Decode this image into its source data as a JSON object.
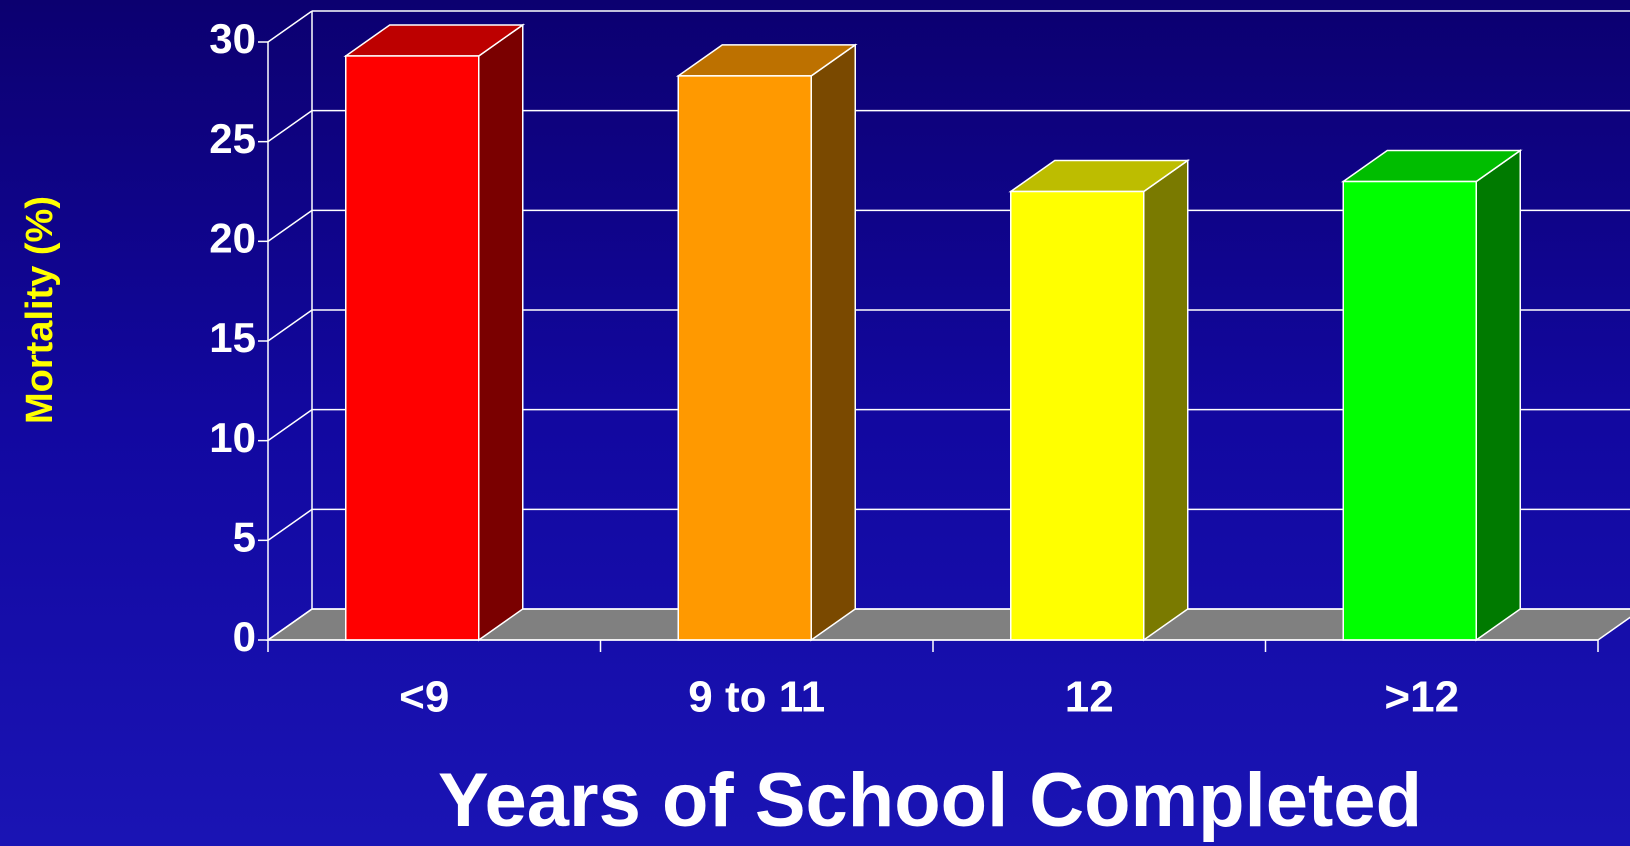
{
  "chart_data": {
    "type": "bar3d",
    "x_label": "Years of School Completed",
    "y_label": "Mortality (%)",
    "categories": [
      "<9",
      "9 to 11",
      "12",
      ">12"
    ],
    "values": [
      29.3,
      28.3,
      22.5,
      23.0
    ],
    "colors": [
      "#ff0000",
      "#ff9900",
      "#ffff00",
      "#00ff00"
    ],
    "ylim": [
      0,
      30
    ],
    "yticks": [
      0,
      5,
      10,
      15,
      20,
      25,
      30
    ],
    "grid": true
  }
}
